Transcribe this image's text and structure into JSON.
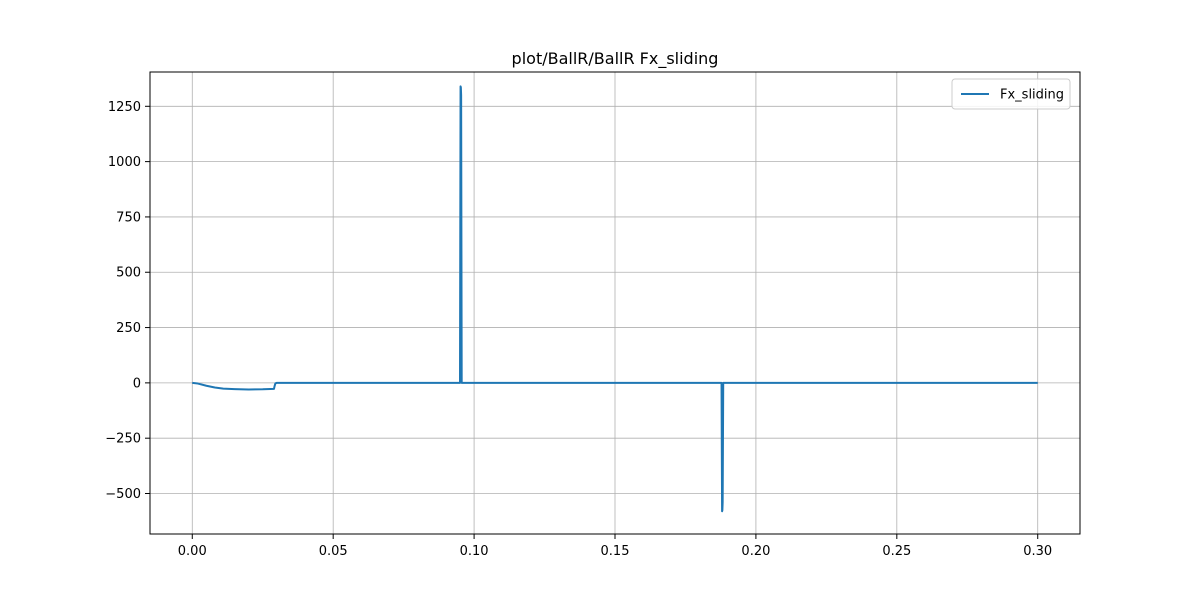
{
  "chart_data": {
    "type": "line",
    "title": "plot/BallR/BallR Fx_sliding",
    "xlabel": "",
    "ylabel": "",
    "xlim": [
      -0.015,
      0.315
    ],
    "ylim": [
      -683,
      1405
    ],
    "grid": true,
    "legend_position": "top-right",
    "x_ticks": [
      0.0,
      0.05,
      0.1,
      0.15,
      0.2,
      0.25,
      0.3
    ],
    "x_tick_labels": [
      "0.00",
      "0.05",
      "0.10",
      "0.15",
      "0.20",
      "0.25",
      "0.30"
    ],
    "y_ticks": [
      -500,
      -250,
      0,
      250,
      500,
      750,
      1000,
      1250
    ],
    "y_tick_labels": [
      "−500",
      "−250",
      "0",
      "250",
      "500",
      "750",
      "1000",
      "1250"
    ],
    "series": [
      {
        "name": "Fx_sliding",
        "color": "#1f77b4",
        "x": [
          0.0,
          0.002,
          0.005,
          0.008,
          0.011,
          0.015,
          0.02,
          0.025,
          0.029,
          0.0292,
          0.0295,
          0.03,
          0.095,
          0.0952,
          0.0953,
          0.0954,
          0.0956,
          0.1,
          0.1878,
          0.188,
          0.1881,
          0.1882,
          0.1884,
          0.2,
          0.3
        ],
        "y": [
          0,
          -3,
          -13,
          -21,
          -26,
          -28,
          -30,
          -29,
          -27,
          -15,
          -2,
          0,
          0,
          1340,
          1335,
          1300,
          0,
          0,
          0,
          -580,
          -575,
          -540,
          0,
          0,
          0
        ]
      }
    ]
  }
}
